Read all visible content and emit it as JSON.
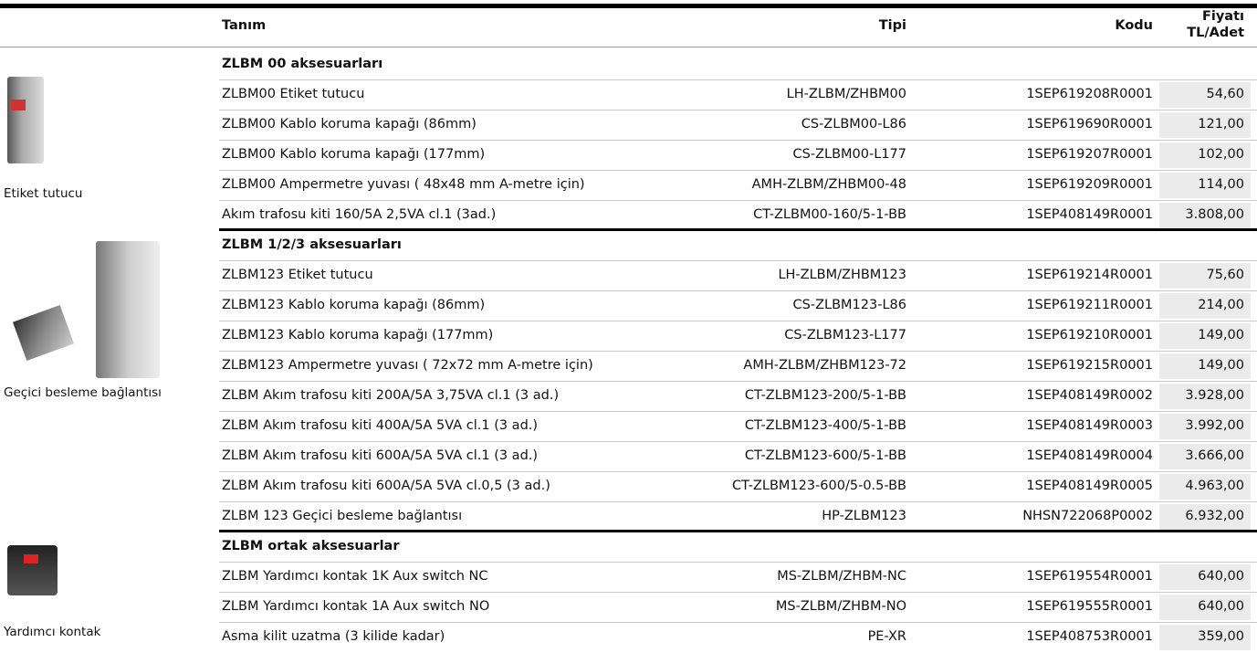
{
  "header": {
    "name": "Tanım",
    "type": "Tipi",
    "code": "Kodu",
    "price_line1": "Fiyatı",
    "price_line2": "TL/Adet"
  },
  "sections": [
    {
      "title": "ZLBM 00 aksesuarları",
      "image_caption": "Etiket tutucu",
      "rows": [
        [
          "ZLBM00 Etiket tutucu",
          "LH-ZLBM/ZHBM00",
          "1SEP619208R0001",
          "54,60"
        ],
        [
          "ZLBM00 Kablo koruma kapağı (86mm)",
          "CS-ZLBM00-L86",
          "1SEP619690R0001",
          "121,00"
        ],
        [
          "ZLBM00 Kablo koruma kapağı (177mm)",
          "CS-ZLBM00-L177",
          "1SEP619207R0001",
          "102,00"
        ],
        [
          "ZLBM00 Ampermetre yuvası ( 48x48 mm A-metre için)",
          "AMH-ZLBM/ZHBM00-48",
          "1SEP619209R0001",
          "114,00"
        ],
        [
          "Akım trafosu kiti 160/5A 2,5VA cl.1 (3ad.)",
          "CT-ZLBM00-160/5-1-BB",
          "1SEP408149R0001",
          "3.808,00"
        ]
      ]
    },
    {
      "title": "ZLBM 1/2/3 aksesuarları",
      "image_caption": "Geçici besleme bağlantısı",
      "rows": [
        [
          "ZLBM123 Etiket tutucu",
          "LH-ZLBM/ZHBM123",
          "1SEP619214R0001",
          "75,60"
        ],
        [
          "ZLBM123 Kablo koruma kapağı (86mm)",
          "CS-ZLBM123-L86",
          "1SEP619211R0001",
          "214,00"
        ],
        [
          "ZLBM123 Kablo koruma kapağı (177mm)",
          "CS-ZLBM123-L177",
          "1SEP619210R0001",
          "149,00"
        ],
        [
          "ZLBM123 Ampermetre yuvası ( 72x72 mm A-metre için)",
          "AMH-ZLBM/ZHBM123-72",
          "1SEP619215R0001",
          "149,00"
        ],
        [
          "ZLBM Akım trafosu kiti 200A/5A 3,75VA cl.1 (3 ad.)",
          "CT-ZLBM123-200/5-1-BB",
          "1SEP408149R0002",
          "3.928,00"
        ],
        [
          "ZLBM Akım trafosu kiti 400A/5A 5VA cl.1 (3 ad.)",
          "CT-ZLBM123-400/5-1-BB",
          "1SEP408149R0003",
          "3.992,00"
        ],
        [
          "ZLBM Akım trafosu kiti 600A/5A 5VA cl.1 (3 ad.)",
          "CT-ZLBM123-600/5-1-BB",
          "1SEP408149R0004",
          "3.666,00"
        ],
        [
          "ZLBM Akım trafosu kiti 600A/5A 5VA cl.0,5 (3 ad.)",
          "CT-ZLBM123-600/5-0.5-BB",
          "1SEP408149R0005",
          "4.963,00"
        ],
        [
          "ZLBM 123 Geçici besleme bağlantısı",
          "HP-ZLBM123",
          "NHSN722068P0002",
          "6.932,00"
        ]
      ]
    },
    {
      "title": "ZLBM ortak aksesuarlar",
      "image_caption": "Yardımcı kontak",
      "rows": [
        [
          "ZLBM Yardımcı kontak 1K Aux switch NC",
          "MS-ZLBM/ZHBM-NC",
          "1SEP619554R0001",
          "640,00"
        ],
        [
          "ZLBM Yardımcı kontak 1A Aux switch NO",
          "MS-ZLBM/ZHBM-NO",
          "1SEP619555R0001",
          "640,00"
        ],
        [
          "Asma kilit uzatma (3 kilide kadar)",
          "PE-XR",
          "1SEP408753R0001",
          "359,00"
        ]
      ]
    }
  ]
}
